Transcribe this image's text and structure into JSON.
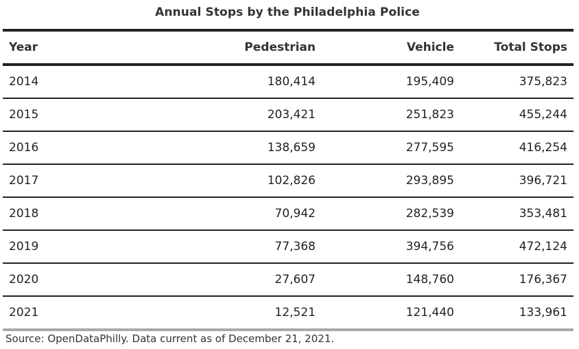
{
  "chart_data": {
    "type": "table",
    "title": "Annual Stops by the Philadelphia Police",
    "columns": [
      "Year",
      "Pedestrian",
      "Vehicle",
      "Total Stops"
    ],
    "rows": [
      [
        "2014",
        "180,414",
        "195,409",
        "375,823"
      ],
      [
        "2015",
        "203,421",
        "251,823",
        "455,244"
      ],
      [
        "2016",
        "138,659",
        "277,595",
        "416,254"
      ],
      [
        "2017",
        "102,826",
        "293,895",
        "396,721"
      ],
      [
        "2018",
        "70,942",
        "282,539",
        "353,481"
      ],
      [
        "2019",
        "77,368",
        "394,756",
        "472,124"
      ],
      [
        "2020",
        "27,607",
        "148,760",
        "176,367"
      ],
      [
        "2021",
        "12,521",
        "121,440",
        "133,961"
      ]
    ],
    "source": "Source: OpenDataPhilly. Data current as of December 21, 2021."
  }
}
